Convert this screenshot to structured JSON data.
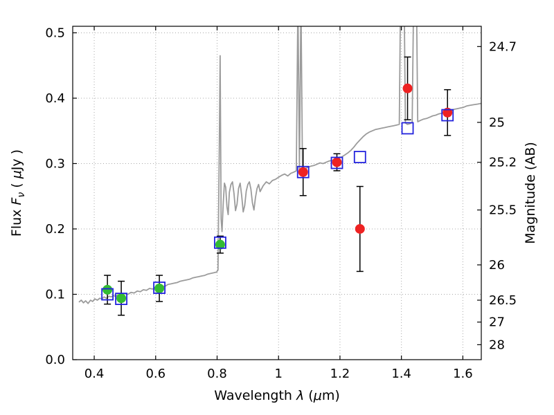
{
  "figure": {
    "description": "Spectral energy distribution plot: model spectrum with observed and model photometry",
    "background": "#ffffff"
  },
  "chart_data": {
    "type": "line",
    "title": "",
    "xlabel": "Wavelength λ (μm)",
    "ylabel_left": "Flux Fν ( μJy )",
    "ylabel_right": "Magnitude (AB)",
    "xlabel_parts": [
      [
        "Wavelength  ",
        "n"
      ],
      [
        "λ",
        "i"
      ],
      [
        " (",
        "n"
      ],
      [
        "μ",
        "i"
      ],
      [
        "m)",
        "n"
      ]
    ],
    "ylabel_left_parts": [
      [
        "Flux  ",
        "n"
      ],
      [
        "F",
        "i"
      ],
      [
        "ν",
        "sub"
      ],
      [
        "  ( ",
        "n"
      ],
      [
        "μ",
        "i"
      ],
      [
        "Jy )",
        "n"
      ]
    ],
    "ylabel_right_parts": [
      [
        "Magnitude (AB)",
        "n"
      ]
    ],
    "xlim": [
      0.33,
      1.66
    ],
    "ylim": [
      0.0,
      0.51
    ],
    "grid": "dotted",
    "x_ticks": [
      {
        "value": 0.4,
        "label": "0.4"
      },
      {
        "value": 0.6,
        "label": "0.6"
      },
      {
        "value": 0.8,
        "label": "0.8"
      },
      {
        "value": 1.0,
        "label": "1"
      },
      {
        "value": 1.2,
        "label": "1.2"
      },
      {
        "value": 1.4,
        "label": "1.4"
      },
      {
        "value": 1.6,
        "label": "1.6"
      }
    ],
    "y_ticks_left": [
      {
        "value": 0.0,
        "label": "0.0"
      },
      {
        "value": 0.1,
        "label": "0.1"
      },
      {
        "value": 0.2,
        "label": "0.2"
      },
      {
        "value": 0.3,
        "label": "0.3"
      },
      {
        "value": 0.4,
        "label": "0.4"
      },
      {
        "value": 0.5,
        "label": "0.5"
      }
    ],
    "y_ticks_right": [
      {
        "value": 0.479,
        "label": "24.7"
      },
      {
        "value": 0.363,
        "label": "25"
      },
      {
        "value": 0.302,
        "label": "25.2"
      },
      {
        "value": 0.229,
        "label": "25.5"
      },
      {
        "value": 0.145,
        "label": "26"
      },
      {
        "value": 0.091,
        "label": "26.5"
      },
      {
        "value": 0.0575,
        "label": "27"
      },
      {
        "value": 0.0229,
        "label": "28"
      }
    ],
    "colors": {
      "spectrum": "#9b9b9b",
      "grid": "#a8a8a8",
      "errorbar": "#000000",
      "observed_optical": "#33bb33",
      "observed_infrared": "#ee2222",
      "model_photometry": "#2222dd",
      "frame": "#000000"
    },
    "series": [
      {
        "name": "model_spectrum",
        "type": "line",
        "color_key": "spectrum",
        "points": [
          [
            0.35,
            0.088
          ],
          [
            0.358,
            0.091
          ],
          [
            0.365,
            0.087
          ],
          [
            0.372,
            0.09
          ],
          [
            0.38,
            0.086
          ],
          [
            0.388,
            0.091
          ],
          [
            0.395,
            0.089
          ],
          [
            0.402,
            0.093
          ],
          [
            0.41,
            0.091
          ],
          [
            0.418,
            0.094
          ],
          [
            0.425,
            0.093
          ],
          [
            0.432,
            0.096
          ],
          [
            0.44,
            0.094
          ],
          [
            0.448,
            0.097
          ],
          [
            0.455,
            0.096
          ],
          [
            0.462,
            0.098
          ],
          [
            0.47,
            0.097
          ],
          [
            0.478,
            0.099
          ],
          [
            0.485,
            0.098
          ],
          [
            0.492,
            0.1
          ],
          [
            0.5,
            0.101
          ],
          [
            0.51,
            0.1
          ],
          [
            0.52,
            0.103
          ],
          [
            0.53,
            0.102
          ],
          [
            0.54,
            0.105
          ],
          [
            0.55,
            0.104
          ],
          [
            0.56,
            0.107
          ],
          [
            0.57,
            0.106
          ],
          [
            0.58,
            0.109
          ],
          [
            0.59,
            0.108
          ],
          [
            0.6,
            0.111
          ],
          [
            0.61,
            0.112
          ],
          [
            0.62,
            0.113
          ],
          [
            0.63,
            0.112
          ],
          [
            0.64,
            0.115
          ],
          [
            0.65,
            0.116
          ],
          [
            0.66,
            0.117
          ],
          [
            0.67,
            0.118
          ],
          [
            0.68,
            0.12
          ],
          [
            0.69,
            0.121
          ],
          [
            0.7,
            0.122
          ],
          [
            0.71,
            0.123
          ],
          [
            0.72,
            0.125
          ],
          [
            0.73,
            0.126
          ],
          [
            0.74,
            0.127
          ],
          [
            0.75,
            0.128
          ],
          [
            0.76,
            0.129
          ],
          [
            0.77,
            0.131
          ],
          [
            0.78,
            0.132
          ],
          [
            0.79,
            0.133
          ],
          [
            0.798,
            0.134
          ],
          [
            0.803,
            0.137
          ],
          [
            0.807,
            0.32
          ],
          [
            0.81,
            0.465
          ],
          [
            0.813,
            0.215
          ],
          [
            0.816,
            0.196
          ],
          [
            0.82,
            0.24
          ],
          [
            0.824,
            0.27
          ],
          [
            0.828,
            0.264
          ],
          [
            0.832,
            0.234
          ],
          [
            0.836,
            0.222
          ],
          [
            0.84,
            0.256
          ],
          [
            0.845,
            0.268
          ],
          [
            0.85,
            0.272
          ],
          [
            0.855,
            0.254
          ],
          [
            0.86,
            0.228
          ],
          [
            0.865,
            0.238
          ],
          [
            0.87,
            0.262
          ],
          [
            0.875,
            0.27
          ],
          [
            0.88,
            0.251
          ],
          [
            0.885,
            0.226
          ],
          [
            0.89,
            0.236
          ],
          [
            0.895,
            0.258
          ],
          [
            0.9,
            0.268
          ],
          [
            0.905,
            0.272
          ],
          [
            0.91,
            0.261
          ],
          [
            0.915,
            0.24
          ],
          [
            0.92,
            0.229
          ],
          [
            0.925,
            0.248
          ],
          [
            0.93,
            0.262
          ],
          [
            0.935,
            0.268
          ],
          [
            0.94,
            0.257
          ],
          [
            0.95,
            0.266
          ],
          [
            0.96,
            0.272
          ],
          [
            0.97,
            0.269
          ],
          [
            0.98,
            0.274
          ],
          [
            0.99,
            0.276
          ],
          [
            1.0,
            0.279
          ],
          [
            1.01,
            0.282
          ],
          [
            1.02,
            0.284
          ],
          [
            1.03,
            0.281
          ],
          [
            1.04,
            0.285
          ],
          [
            1.05,
            0.287
          ],
          [
            1.058,
            0.289
          ],
          [
            1.063,
            0.55
          ],
          [
            1.068,
            0.291
          ],
          [
            1.073,
            0.55
          ],
          [
            1.078,
            0.29
          ],
          [
            1.085,
            0.292
          ],
          [
            1.095,
            0.294
          ],
          [
            1.105,
            0.296
          ],
          [
            1.115,
            0.297
          ],
          [
            1.125,
            0.299
          ],
          [
            1.135,
            0.301
          ],
          [
            1.145,
            0.3
          ],
          [
            1.155,
            0.302
          ],
          [
            1.165,
            0.304
          ],
          [
            1.175,
            0.305
          ],
          [
            1.185,
            0.307
          ],
          [
            1.195,
            0.308
          ],
          [
            1.205,
            0.31
          ],
          [
            1.215,
            0.313
          ],
          [
            1.225,
            0.316
          ],
          [
            1.235,
            0.32
          ],
          [
            1.245,
            0.325
          ],
          [
            1.255,
            0.331
          ],
          [
            1.265,
            0.336
          ],
          [
            1.275,
            0.341
          ],
          [
            1.285,
            0.345
          ],
          [
            1.295,
            0.348
          ],
          [
            1.305,
            0.35
          ],
          [
            1.315,
            0.352
          ],
          [
            1.325,
            0.353
          ],
          [
            1.335,
            0.354
          ],
          [
            1.345,
            0.355
          ],
          [
            1.355,
            0.356
          ],
          [
            1.365,
            0.357
          ],
          [
            1.375,
            0.358
          ],
          [
            1.385,
            0.359
          ],
          [
            1.393,
            0.36
          ],
          [
            1.398,
            0.6
          ],
          [
            1.408,
            0.6
          ],
          [
            1.413,
            0.362
          ],
          [
            1.42,
            0.36
          ],
          [
            1.428,
            0.361
          ],
          [
            1.435,
            0.363
          ],
          [
            1.441,
            0.6
          ],
          [
            1.448,
            0.6
          ],
          [
            1.453,
            0.364
          ],
          [
            1.462,
            0.366
          ],
          [
            1.472,
            0.368
          ],
          [
            1.482,
            0.369
          ],
          [
            1.492,
            0.371
          ],
          [
            1.502,
            0.373
          ],
          [
            1.512,
            0.374
          ],
          [
            1.522,
            0.376
          ],
          [
            1.532,
            0.377
          ],
          [
            1.542,
            0.379
          ],
          [
            1.552,
            0.38
          ],
          [
            1.562,
            0.381
          ],
          [
            1.572,
            0.383
          ],
          [
            1.582,
            0.384
          ],
          [
            1.592,
            0.385
          ],
          [
            1.602,
            0.386
          ],
          [
            1.612,
            0.388
          ],
          [
            1.622,
            0.389
          ],
          [
            1.635,
            0.39
          ],
          [
            1.648,
            0.391
          ],
          [
            1.66,
            0.392
          ]
        ]
      },
      {
        "name": "observed_photometry_optical",
        "type": "scatter",
        "marker": "circle",
        "color_key": "observed_optical",
        "points": [
          {
            "x": 0.443,
            "y": 0.107,
            "err": 0.022
          },
          {
            "x": 0.488,
            "y": 0.094,
            "err": 0.026
          },
          {
            "x": 0.612,
            "y": 0.109,
            "err": 0.02
          },
          {
            "x": 0.81,
            "y": 0.176,
            "err": 0.013
          }
        ]
      },
      {
        "name": "observed_photometry_infrared",
        "type": "scatter",
        "marker": "circle",
        "color_key": "observed_infrared",
        "points": [
          {
            "x": 1.08,
            "y": 0.287,
            "err": 0.036
          },
          {
            "x": 1.19,
            "y": 0.302,
            "err": 0.013
          },
          {
            "x": 1.265,
            "y": 0.2,
            "err": 0.065
          },
          {
            "x": 1.42,
            "y": 0.415,
            "err": 0.048
          },
          {
            "x": 1.55,
            "y": 0.378,
            "err": 0.035
          }
        ]
      },
      {
        "name": "model_photometry",
        "type": "scatter",
        "marker": "open-square",
        "color_key": "model_photometry",
        "points": [
          {
            "x": 0.443,
            "y": 0.1
          },
          {
            "x": 0.488,
            "y": 0.093
          },
          {
            "x": 0.612,
            "y": 0.11
          },
          {
            "x": 0.81,
            "y": 0.179
          },
          {
            "x": 1.08,
            "y": 0.287
          },
          {
            "x": 1.19,
            "y": 0.301
          },
          {
            "x": 1.265,
            "y": 0.31
          },
          {
            "x": 1.42,
            "y": 0.354
          },
          {
            "x": 1.55,
            "y": 0.374
          }
        ]
      }
    ]
  }
}
